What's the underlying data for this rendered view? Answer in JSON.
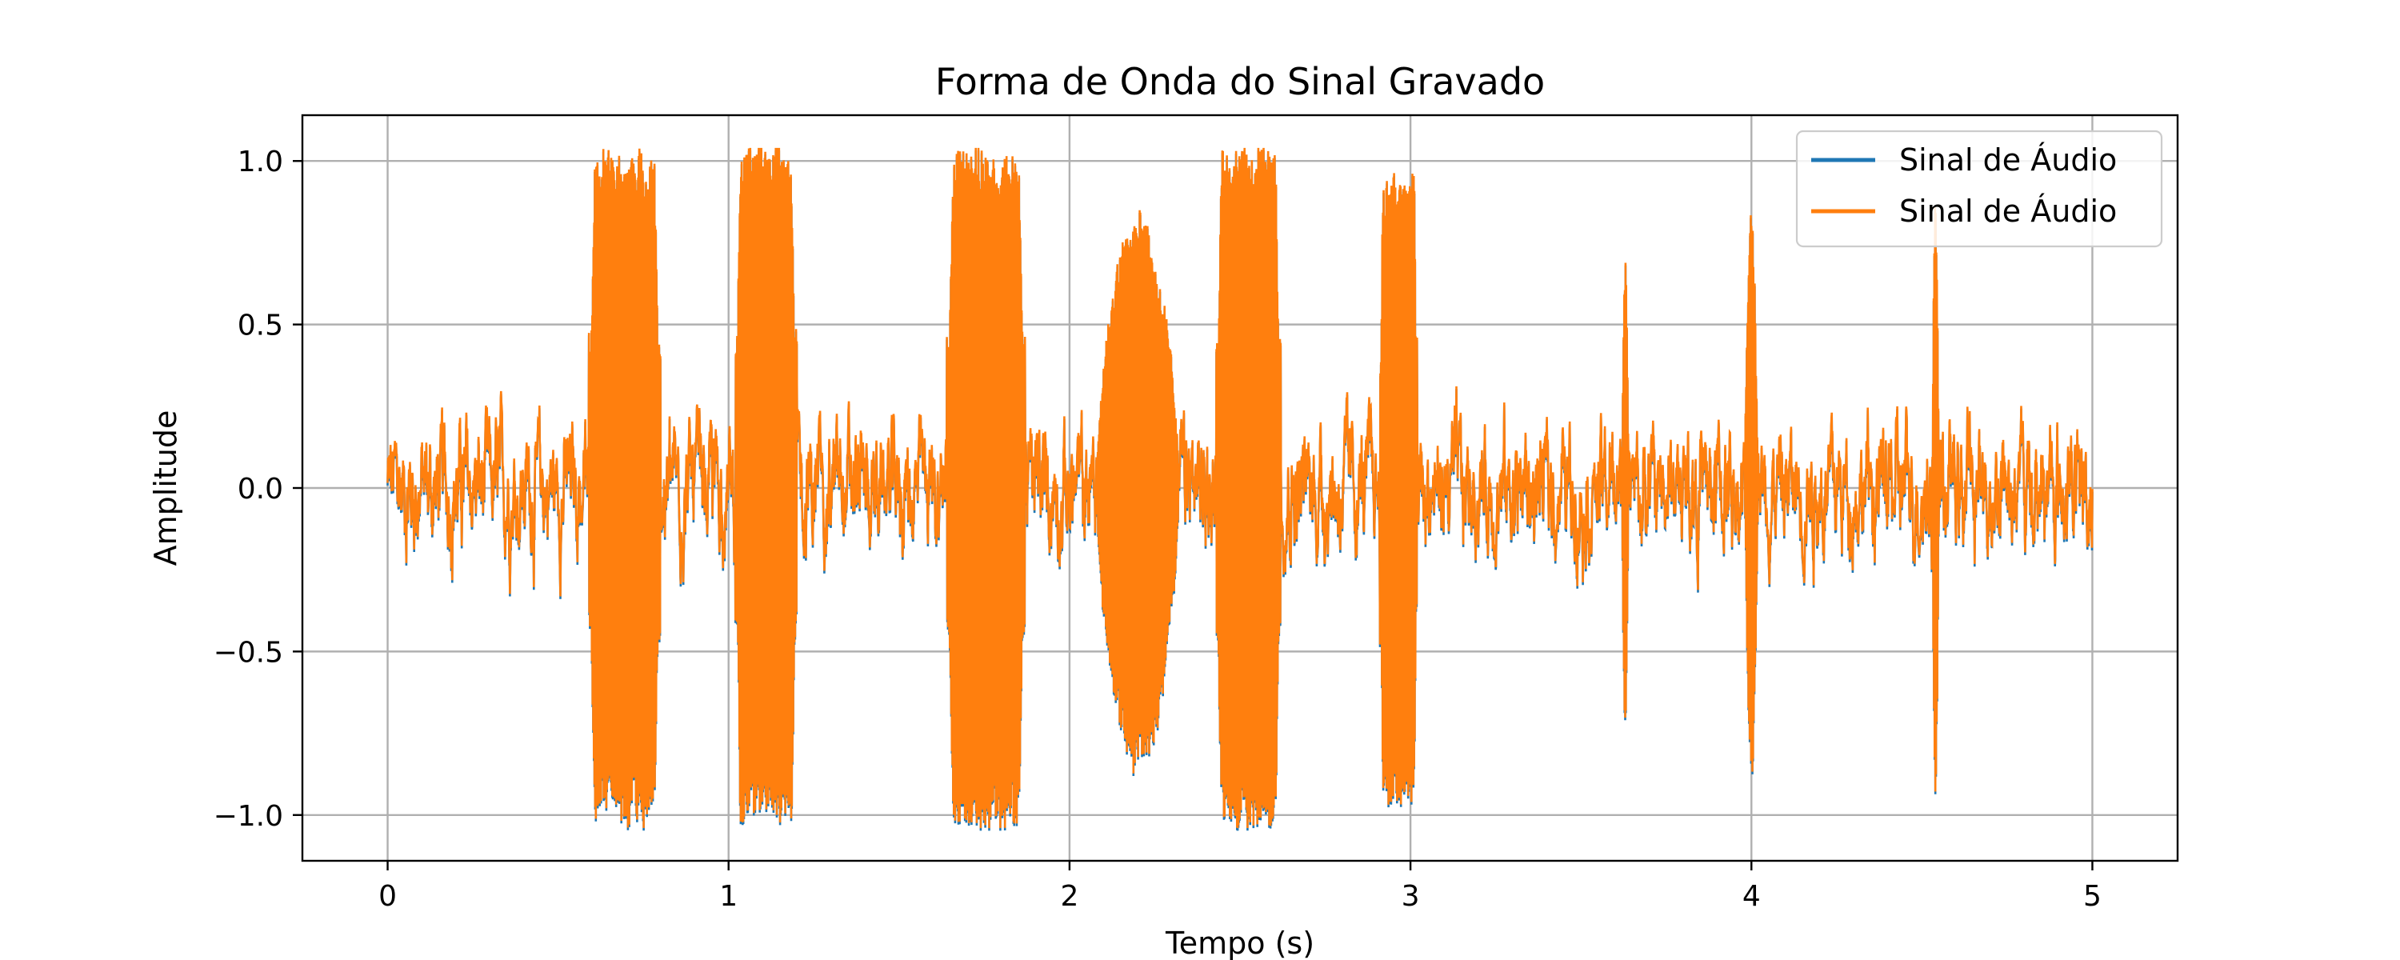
{
  "chart_data": {
    "type": "line",
    "title": "Forma de Onda do Sinal Gravado",
    "xlabel": "Tempo (s)",
    "ylabel": "Amplitude",
    "xlim": [
      -0.25,
      5.25
    ],
    "ylim": [
      -1.14,
      1.14
    ],
    "xticks": [
      0,
      1,
      2,
      3,
      4,
      5
    ],
    "xtick_labels": [
      "0",
      "1",
      "2",
      "3",
      "4",
      "5"
    ],
    "yticks": [
      -1.0,
      -0.5,
      0.0,
      0.5,
      1.0
    ],
    "ytick_labels": [
      "−1.0",
      "−0.5",
      "0.0",
      "0.5",
      "1.0"
    ],
    "grid": true,
    "legend_position": "top-right",
    "series": [
      {
        "name": "Sinal de Áudio",
        "color": "#1f77b4"
      },
      {
        "name": "Sinal de Áudio",
        "color": "#ff7f0e"
      }
    ],
    "duration": 5,
    "background_amplitude": 0.22,
    "bursts": [
      {
        "start": 0.59,
        "end": 0.8,
        "amplitude": 1.01
      },
      {
        "start": 1.02,
        "end": 1.2,
        "amplitude": 1.02
      },
      {
        "start": 1.64,
        "end": 1.87,
        "amplitude": 1.03
      },
      {
        "start": 2.08,
        "end": 2.32,
        "amplitude": 0.84
      },
      {
        "start": 2.43,
        "end": 2.62,
        "amplitude": 1.04
      },
      {
        "start": 2.91,
        "end": 3.02,
        "amplitude": 0.96
      },
      {
        "start": 3.62,
        "end": 3.64,
        "amplitude": 0.7
      },
      {
        "start": 3.98,
        "end": 4.02,
        "amplitude": 0.88
      },
      {
        "start": 4.53,
        "end": 4.55,
        "amplitude": 0.92
      }
    ]
  }
}
